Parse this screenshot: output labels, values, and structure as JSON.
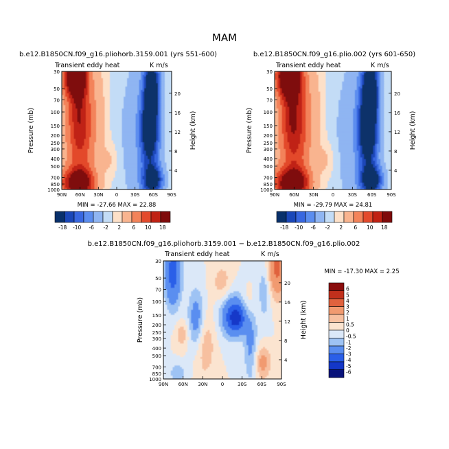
{
  "figure_title": "MAM",
  "palette": {
    "div12": [
      "#08306b",
      "#1a47b8",
      "#3867e0",
      "#5b8def",
      "#8fb5f2",
      "#c3dcf6",
      "#fde0c8",
      "#f9b48f",
      "#f3835a",
      "#e34a2c",
      "#c02113",
      "#7f0a0a"
    ],
    "diff12": [
      "#08127a",
      "#1437c8",
      "#2a5fe8",
      "#5a8ef0",
      "#9ec3f4",
      "#dbe8f8",
      "#fbe4d0",
      "#f7c0a0",
      "#f19a70",
      "#e0623e",
      "#c1301c",
      "#8a0c0c"
    ]
  },
  "chart_data": [
    {
      "type": "heatmap",
      "id": "panel1",
      "title": "b.e12.B1850CN.f09_g16.pliohorb.3159.001 (yrs 551-600)",
      "subtitle_left": "Transient eddy heat",
      "subtitle_right": "K m/s",
      "ylabel": "Pressure (mb)",
      "ylabel_right": "Height (km)",
      "x_ticks": [
        "90N",
        "60N",
        "30N",
        "0",
        "30S",
        "60S",
        "90S"
      ],
      "y_ticks": [
        "30",
        "50",
        "70",
        "100",
        "150",
        "200",
        "250",
        "300",
        "400",
        "500",
        "700",
        "850",
        "1000"
      ],
      "height_ticks": [
        "4",
        "8",
        "12",
        "16",
        "20"
      ],
      "min_max": "MIN = -27.66   MAX =  22.88",
      "colorbar_labels": [
        "-18",
        "-10",
        "-6",
        "-2",
        "2",
        "6",
        "10",
        "18"
      ]
    },
    {
      "type": "heatmap",
      "id": "panel2",
      "title": "b.e12.B1850CN.f09_g16.plio.002 (yrs 601-650)",
      "subtitle_left": "Transient eddy heat",
      "subtitle_right": "K m/s",
      "ylabel": "Pressure (mb)",
      "ylabel_right": "Height (km)",
      "x_ticks": [
        "90N",
        "60N",
        "30N",
        "0",
        "30S",
        "60S",
        "90S"
      ],
      "y_ticks": [
        "30",
        "50",
        "70",
        "100",
        "150",
        "200",
        "250",
        "300",
        "400",
        "500",
        "700",
        "850",
        "1000"
      ],
      "height_ticks": [
        "4",
        "8",
        "12",
        "16",
        "20"
      ],
      "min_max": "MIN = -29.79   MAX =  24.81",
      "colorbar_labels": [
        "-18",
        "-10",
        "-6",
        "-2",
        "2",
        "6",
        "10",
        "18"
      ]
    },
    {
      "type": "heatmap",
      "id": "panel3",
      "title": "b.e12.B1850CN.f09_g16.pliohorb.3159.001 − b.e12.B1850CN.f09_g16.plio.002",
      "subtitle_left": "Transient eddy heat",
      "subtitle_right": "K m/s",
      "ylabel": "Pressure (mb)",
      "ylabel_right": "Height (km)",
      "x_ticks": [
        "90N",
        "60N",
        "30N",
        "0",
        "30S",
        "60S",
        "90S"
      ],
      "y_ticks": [
        "30",
        "50",
        "70",
        "100",
        "150",
        "200",
        "250",
        "300",
        "400",
        "500",
        "700",
        "850",
        "1000"
      ],
      "height_ticks": [
        "4",
        "8",
        "12",
        "16",
        "20"
      ],
      "min_max": "MIN = -17.30   MAX =    2.25",
      "colorbar_labels": [
        "6",
        "5",
        "4",
        "3",
        "2",
        "1",
        "0.5",
        "0",
        "-0.5",
        "-1",
        "-2",
        "-3",
        "-4",
        "-5",
        "-6"
      ]
    }
  ]
}
